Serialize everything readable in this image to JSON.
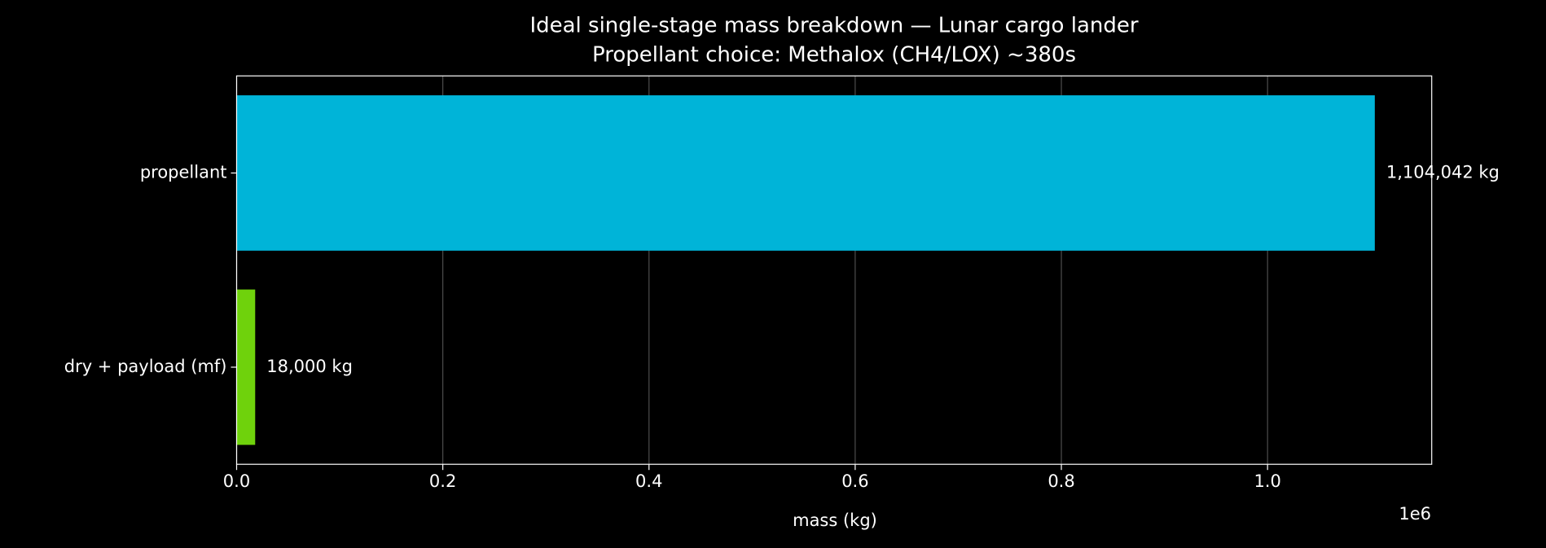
{
  "chart_data": {
    "type": "hbar",
    "title": "Ideal single-stage mass breakdown — Lunar cargo lander",
    "subtitle": "Propellant choice: Methalox (CH4/LOX) ~380s",
    "xlabel": "mass (kg)",
    "x_offset_label": "1e6",
    "categories": [
      "dry + payload (mf)",
      "propellant"
    ],
    "values": [
      18000,
      1104042
    ],
    "value_labels": [
      "18,000 kg",
      "1,104,042 kg"
    ],
    "colors": [
      "#6fd20c",
      "#00b4d8"
    ],
    "xlim": [
      0,
      1159244
    ],
    "xticks": [
      {
        "value": 0,
        "label": "0.0"
      },
      {
        "value": 200000,
        "label": "0.2"
      },
      {
        "value": 400000,
        "label": "0.4"
      },
      {
        "value": 600000,
        "label": "0.6"
      },
      {
        "value": 800000,
        "label": "0.8"
      },
      {
        "value": 1000000,
        "label": "1.0"
      }
    ],
    "grid": true
  }
}
